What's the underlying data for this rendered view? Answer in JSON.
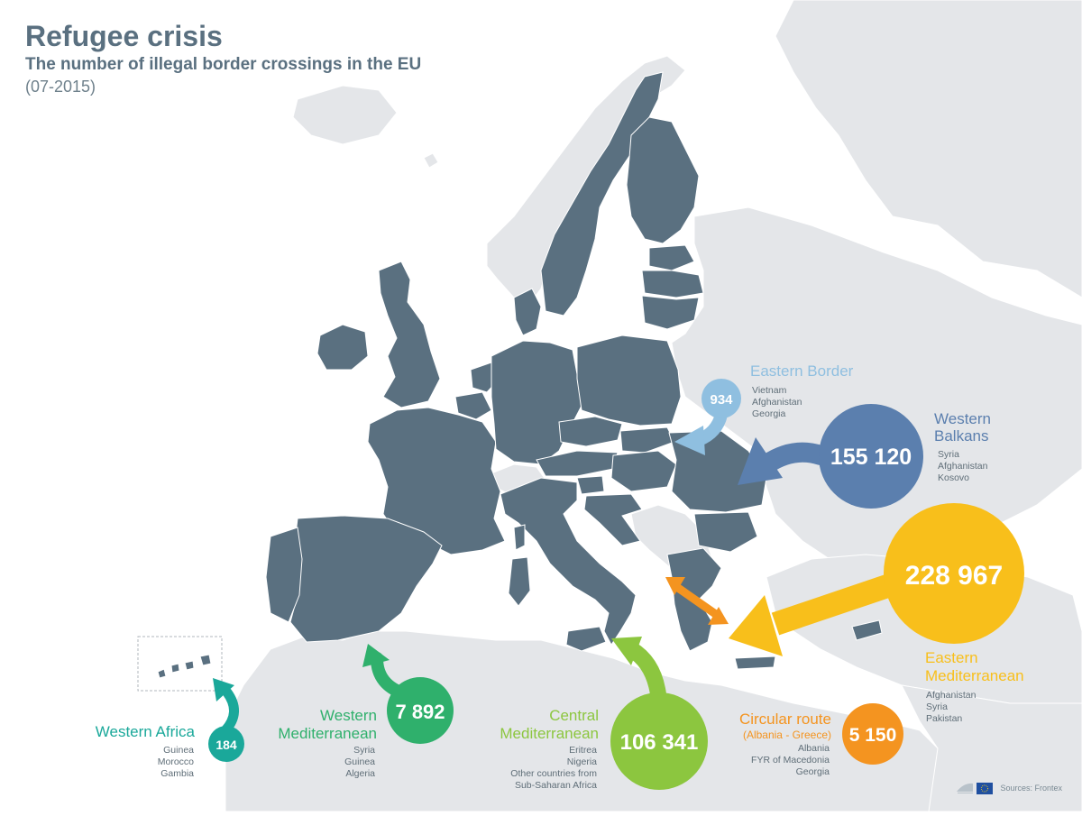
{
  "header": {
    "title": "Refugee crisis",
    "subtitle": "The number of illegal border crossings in the EU",
    "period": "(07-2015)"
  },
  "routes": {
    "eastern_border": {
      "value": "934",
      "name": "Eastern Border",
      "countries": [
        "Vietnam",
        "Afghanistan",
        "Georgia"
      ],
      "color": "#8fbfe0"
    },
    "western_balkans": {
      "value": "155 120",
      "name_lines": [
        "Western",
        "Balkans"
      ],
      "countries": [
        "Syria",
        "Afghanistan",
        "Kosovo"
      ],
      "color": "#5b7fae"
    },
    "eastern_mediterranean": {
      "value": "228 967",
      "name_lines": [
        "Eastern",
        "Mediterranean"
      ],
      "countries": [
        "Afghanistan",
        "Syria",
        "Pakistan"
      ],
      "color": "#f8bf1b"
    },
    "western_africa": {
      "value": "184",
      "name": "Western Africa",
      "countries": [
        "Guinea",
        "Morocco",
        "Gambia"
      ],
      "color": "#1aa89a"
    },
    "western_mediterranean": {
      "value": "7 892",
      "name_lines": [
        "Western",
        "Mediterranean"
      ],
      "countries": [
        "Syria",
        "Guinea",
        "Algeria"
      ],
      "color": "#2fb06c"
    },
    "central_mediterranean": {
      "value": "106 341",
      "name_lines": [
        "Central",
        "Mediterranean"
      ],
      "countries": [
        "Eritrea",
        "Nigeria",
        "Other countries from",
        "Sub-Saharan Africa"
      ],
      "color": "#8cc63f"
    },
    "circular_route": {
      "value": "5 150",
      "name": "Circular route",
      "name_sub": "(Albania - Greece)",
      "countries": [
        "Albania",
        "FYR of Macedonia",
        "Georgia"
      ],
      "color": "#f49420"
    }
  },
  "map_colors": {
    "eu_land": "#5a7080",
    "non_eu_land": "#e4e6e9",
    "border": "#ffffff"
  },
  "footer": {
    "source": "Sources: Frontex",
    "logo_icon": "european-parliament-logo"
  }
}
